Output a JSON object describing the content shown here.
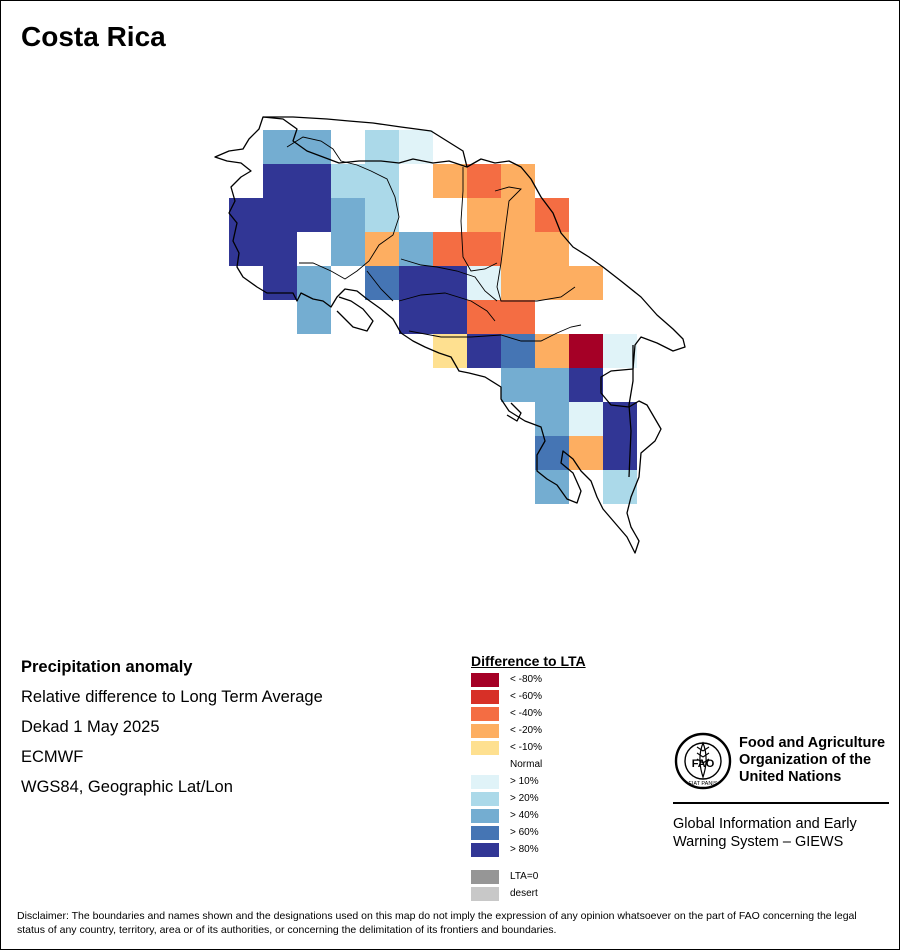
{
  "title": "Costa Rica",
  "info": {
    "heading": "Precipitation anomaly",
    "subtitle": "Relative difference to Long Term Average",
    "period": "Dekad 1 May 2025",
    "source": "ECMWF",
    "projection": "WGS84, Geographic Lat/Lon"
  },
  "legend": {
    "title": "Difference to LTA",
    "items": [
      {
        "label": "< -80%",
        "color": "#a50026"
      },
      {
        "label": "< -60%",
        "color": "#d73027"
      },
      {
        "label": "< -40%",
        "color": "#f46d43"
      },
      {
        "label": "< -20%",
        "color": "#fdae61"
      },
      {
        "label": "< -10%",
        "color": "#fee090"
      },
      {
        "label": "Normal",
        "color": "#ffffff"
      },
      {
        "label": "> 10%",
        "color": "#e0f3f8"
      },
      {
        "label": "> 20%",
        "color": "#abd9e9"
      },
      {
        "label": "> 40%",
        "color": "#74add1"
      },
      {
        "label": "> 60%",
        "color": "#4575b4"
      },
      {
        "label": "> 80%",
        "color": "#313695"
      }
    ],
    "extra": [
      {
        "label": "LTA=0",
        "color": "#969696"
      },
      {
        "label": "desert",
        "color": "#c8c8c8"
      }
    ]
  },
  "organization": {
    "name_line1": "Food and Agriculture",
    "name_line2": "Organization of the",
    "name_line3": "United Nations",
    "logo_text": "FAO",
    "logo_motto": "FIAT PANIS",
    "system_line1": "Global Information and Early",
    "system_line2": "Warning System – GIEWS"
  },
  "disclaimer": "Disclaimer: The boundaries and names shown and the designations used on this map do not imply the expression of any opinion whatsoever on the part of FAO concerning the legal status of any country, territory, area or of its authorities, or concerning the delimitation of its frontiers and boundaries.",
  "grid_anomaly": [
    {
      "row": 0,
      "col": 0,
      "class": "> 40%"
    },
    {
      "row": 0,
      "col": 1,
      "class": "> 40%"
    },
    {
      "row": 0,
      "col": 2,
      "class": "Normal"
    },
    {
      "row": 0,
      "col": 3,
      "class": "> 20%"
    },
    {
      "row": 0,
      "col": 4,
      "class": "> 10%"
    },
    {
      "row": 1,
      "col": 0,
      "class": "> 80%"
    },
    {
      "row": 1,
      "col": 1,
      "class": "> 80%"
    },
    {
      "row": 1,
      "col": 2,
      "class": "> 20%"
    },
    {
      "row": 1,
      "col": 3,
      "class": "> 20%"
    },
    {
      "row": 1,
      "col": 4,
      "class": "Normal"
    },
    {
      "row": 1,
      "col": 5,
      "class": "< -20%"
    },
    {
      "row": 1,
      "col": 6,
      "class": "< -40%"
    },
    {
      "row": 1,
      "col": 7,
      "class": "< -20%"
    },
    {
      "row": 2,
      "col": -1,
      "class": "> 80%"
    },
    {
      "row": 2,
      "col": 0,
      "class": "> 80%"
    },
    {
      "row": 2,
      "col": 1,
      "class": "> 80%"
    },
    {
      "row": 2,
      "col": 2,
      "class": "> 40%"
    },
    {
      "row": 2,
      "col": 3,
      "class": "> 20%"
    },
    {
      "row": 2,
      "col": 4,
      "class": "Normal"
    },
    {
      "row": 2,
      "col": 5,
      "class": "Normal"
    },
    {
      "row": 2,
      "col": 6,
      "class": "< -20%"
    },
    {
      "row": 2,
      "col": 7,
      "class": "< -20%"
    },
    {
      "row": 2,
      "col": 8,
      "class": "< -40%"
    },
    {
      "row": 3,
      "col": -1,
      "class": "> 80%"
    },
    {
      "row": 3,
      "col": 0,
      "class": "> 80%"
    },
    {
      "row": 3,
      "col": 1,
      "class": "Normal"
    },
    {
      "row": 3,
      "col": 2,
      "class": "> 40%"
    },
    {
      "row": 3,
      "col": 3,
      "class": "< -20%"
    },
    {
      "row": 3,
      "col": 4,
      "class": "> 40%"
    },
    {
      "row": 3,
      "col": 5,
      "class": "< -40%"
    },
    {
      "row": 3,
      "col": 6,
      "class": "< -40%"
    },
    {
      "row": 3,
      "col": 7,
      "class": "< -20%"
    },
    {
      "row": 3,
      "col": 8,
      "class": "< -20%"
    },
    {
      "row": 4,
      "col": 0,
      "class": "> 80%"
    },
    {
      "row": 4,
      "col": 1,
      "class": "> 40%"
    },
    {
      "row": 4,
      "col": 2,
      "class": "Normal"
    },
    {
      "row": 4,
      "col": 3,
      "class": "> 60%"
    },
    {
      "row": 4,
      "col": 4,
      "class": "> 80%"
    },
    {
      "row": 4,
      "col": 5,
      "class": "> 80%"
    },
    {
      "row": 4,
      "col": 6,
      "class": "> 10%"
    },
    {
      "row": 4,
      "col": 7,
      "class": "< -20%"
    },
    {
      "row": 4,
      "col": 8,
      "class": "< -20%"
    },
    {
      "row": 4,
      "col": 9,
      "class": "< -20%"
    },
    {
      "row": 5,
      "col": 1,
      "class": "> 40%"
    },
    {
      "row": 5,
      "col": 4,
      "class": "> 80%"
    },
    {
      "row": 5,
      "col": 5,
      "class": "> 80%"
    },
    {
      "row": 5,
      "col": 6,
      "class": "< -40%"
    },
    {
      "row": 5,
      "col": 7,
      "class": "< -40%"
    },
    {
      "row": 5,
      "col": 8,
      "class": "Normal"
    },
    {
      "row": 6,
      "col": 5,
      "class": "< -10%"
    },
    {
      "row": 6,
      "col": 6,
      "class": "> 80%"
    },
    {
      "row": 6,
      "col": 7,
      "class": "> 60%"
    },
    {
      "row": 6,
      "col": 8,
      "class": "< -20%"
    },
    {
      "row": 6,
      "col": 9,
      "class": "< -80%"
    },
    {
      "row": 6,
      "col": 10,
      "class": "> 10%"
    },
    {
      "row": 7,
      "col": 7,
      "class": "> 40%"
    },
    {
      "row": 7,
      "col": 8,
      "class": "> 40%"
    },
    {
      "row": 7,
      "col": 9,
      "class": "> 80%"
    },
    {
      "row": 8,
      "col": 8,
      "class": "> 40%"
    },
    {
      "row": 8,
      "col": 9,
      "class": "> 10%"
    },
    {
      "row": 8,
      "col": 10,
      "class": "> 80%"
    },
    {
      "row": 9,
      "col": 8,
      "class": "> 60%"
    },
    {
      "row": 9,
      "col": 9,
      "class": "< -20%"
    },
    {
      "row": 9,
      "col": 10,
      "class": "> 80%"
    },
    {
      "row": 10,
      "col": 8,
      "class": "> 40%"
    },
    {
      "row": 10,
      "col": 10,
      "class": "> 20%"
    }
  ]
}
